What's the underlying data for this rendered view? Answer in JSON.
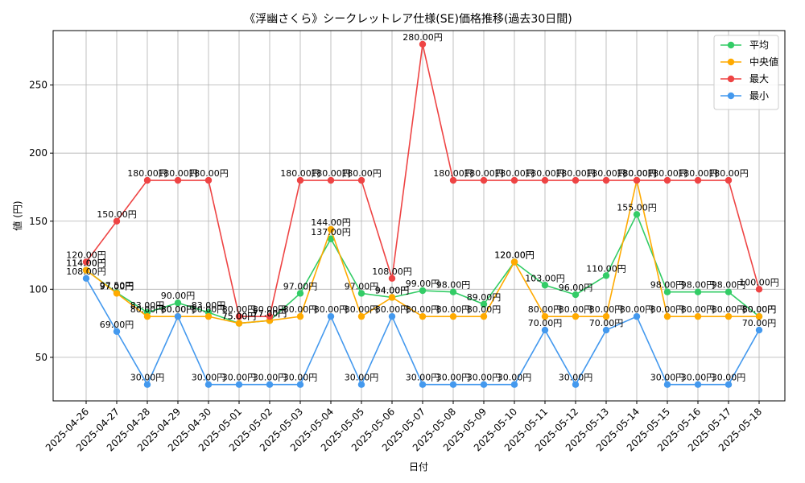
{
  "chart_data": {
    "type": "line",
    "title": "《浮幽さくら》シークレットレア仕様(SE)価格推移(過去30日間)",
    "xlabel": "日付",
    "ylabel": "値 (円)",
    "ylim": [
      18,
      290
    ],
    "yticks": [
      50,
      100,
      150,
      200,
      250
    ],
    "grid": true,
    "legend_position": "top-right",
    "value_suffix": "円",
    "categories": [
      "2025-04-26",
      "2025-04-27",
      "2025-04-28",
      "2025-04-29",
      "2025-04-30",
      "2025-05-01",
      "2025-05-02",
      "2025-05-03",
      "2025-05-04",
      "2025-05-05",
      "2025-05-06",
      "2025-05-07",
      "2025-05-08",
      "2025-05-09",
      "2025-05-10",
      "2025-05-11",
      "2025-05-12",
      "2025-05-13",
      "2025-05-14",
      "2025-05-15",
      "2025-05-16",
      "2025-05-17",
      "2025-05-18"
    ],
    "series": [
      {
        "name": "平均",
        "color": "#33cc66",
        "values": [
          114,
          97.5,
          83,
          90,
          83,
          75,
          77,
          97,
          137,
          97,
          94,
          99,
          98,
          89,
          120,
          103,
          96,
          110,
          155,
          98,
          98,
          98,
          80
        ]
      },
      {
        "name": "中央値",
        "color": "#ffaa00",
        "values": [
          114,
          97,
          80,
          80,
          80,
          75,
          77,
          80,
          144,
          80,
          94,
          80,
          80,
          80,
          120,
          80,
          80,
          80,
          180,
          80,
          80,
          80,
          80
        ]
      },
      {
        "name": "最大",
        "color": "#ee4444",
        "values": [
          120,
          150,
          180,
          180,
          180,
          80,
          80,
          180,
          180,
          180,
          108,
          280,
          180,
          180,
          180,
          180,
          180,
          180,
          180,
          180,
          180,
          180,
          100
        ]
      },
      {
        "name": "最小",
        "color": "#4499ee",
        "values": [
          108,
          69,
          30,
          80,
          30,
          30,
          30,
          30,
          80,
          30,
          80,
          30,
          30,
          30,
          30,
          70,
          30,
          70,
          80,
          30,
          30,
          30,
          70
        ]
      }
    ]
  }
}
